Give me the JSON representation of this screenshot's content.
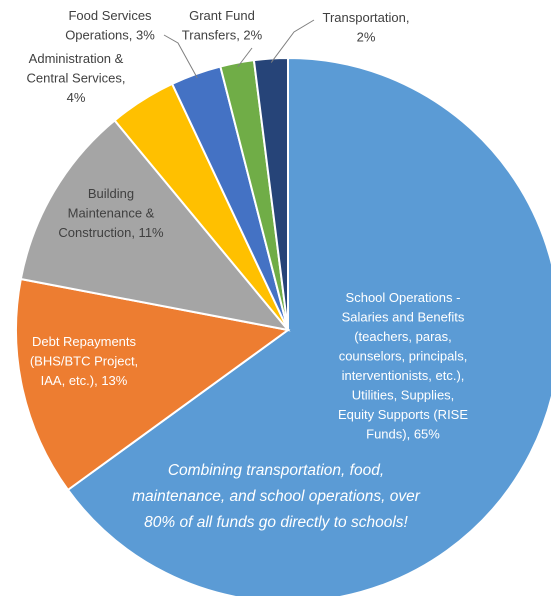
{
  "chart_data": {
    "type": "pie",
    "title": "",
    "slices": [
      {
        "label": "School Operations - Salaries and Benefits (teachers, paras, counselors, principals, interventionists, etc.), Utilities, Supplies, Equity Supports (RISE Funds), 65%",
        "value": 65,
        "color": "#5b9bd5",
        "label_lines": [
          "School Operations -",
          "Salaries and Benefits",
          "(teachers, paras,",
          "counselors, principals,",
          "interventionists, etc.),",
          "Utilities, Supplies,",
          "Equity Supports (RISE",
          "Funds), 65%"
        ]
      },
      {
        "label": "Debt Repayments (BHS/BTC Project, IAA, etc.), 13%",
        "value": 13,
        "color": "#ed7d31",
        "label_lines": [
          "Debt Repayments",
          "(BHS/BTC Project,",
          "IAA, etc.), 13%"
        ]
      },
      {
        "label": "Building Maintenance & Construction, 11%",
        "value": 11,
        "color": "#a5a5a5",
        "label_lines": [
          "Building",
          "Maintenance &",
          "Construction, 11%"
        ]
      },
      {
        "label": "Administration & Central Services, 4%",
        "value": 4,
        "color": "#ffc000",
        "label_lines": [
          "Administration &",
          "Central Services,",
          "4%"
        ]
      },
      {
        "label": "Food Services Operations, 3%",
        "value": 3,
        "color": "#4472c4",
        "label_lines": [
          "Food Services",
          "Operations, 3%"
        ]
      },
      {
        "label": "Grant Fund Transfers, 2%",
        "value": 2,
        "color": "#70ad47",
        "label_lines": [
          "Grant Fund",
          "Transfers, 2%"
        ]
      },
      {
        "label": "Transportation, 2%",
        "value": 2,
        "color": "#264478",
        "label_lines": [
          "Transportation,",
          "2%"
        ]
      }
    ],
    "annotation_lines": [
      "Combining transportation, food,",
      "maintenance, and school operations, over",
      "80% of all funds go directly to schools!"
    ],
    "legend": "none"
  }
}
